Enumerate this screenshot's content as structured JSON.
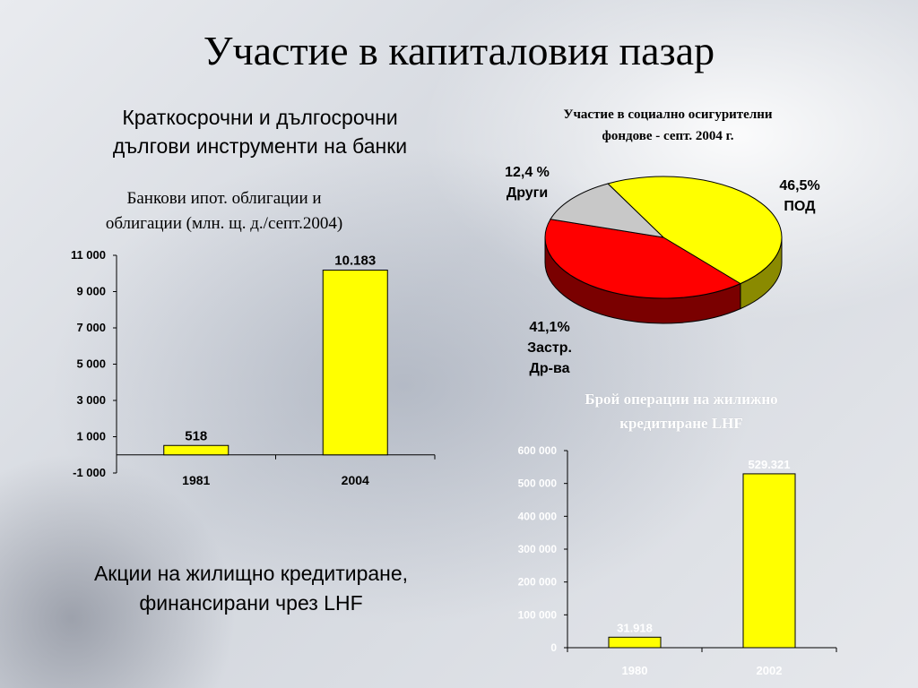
{
  "title": "Участие в капиталовия пазар",
  "subheading": [
    "Краткосрочни и дългосрочни",
    "дългови инструменти на банки"
  ],
  "left_chart_title": [
    "Банкови ипот. облигации и",
    "облигации (млн. щ. д./септ.2004)"
  ],
  "pie_title": [
    "Участие в социално осигурителни",
    "фондове - септ. 2004 г."
  ],
  "right_chart_title": [
    "Брой операции на жилижно",
    "кредитиране LHF"
  ],
  "bottom_text": [
    "Акции на жилищно кредитиране,",
    "финансирани чрез LHF"
  ],
  "pie_labels": {
    "others": [
      "12,4 %",
      "Други"
    ],
    "pod": [
      "46,5%",
      "ПОД"
    ],
    "insurance": [
      "41,1%",
      "Застр.",
      "Др-ва"
    ]
  },
  "colors": {
    "bar": "#ffff00",
    "pod": "#ffff00",
    "insurance": "#ff0000",
    "others": "#c8c8c8"
  },
  "chart_data": [
    {
      "type": "bar",
      "title": "Банкови ипот. облигации и облигации (млн. щ. д./септ.2004)",
      "categories": [
        "1981",
        "2004"
      ],
      "values": [
        518,
        10183
      ],
      "data_labels": [
        "518",
        "10.183"
      ],
      "ylim": [
        -1000,
        11000
      ],
      "yticks": [
        -1000,
        1000,
        3000,
        5000,
        7000,
        9000,
        11000
      ],
      "ytick_labels": [
        "-1 000",
        "1 000",
        "3 000",
        "5 000",
        "7 000",
        "9 000",
        "11 000"
      ],
      "grid": false
    },
    {
      "type": "pie",
      "title": "Участие в социално осигурителни фондове - септ. 2004 г.",
      "labels": [
        "ПОД",
        "Застр. Др-ва",
        "Други"
      ],
      "values": [
        46.5,
        41.1,
        12.4
      ],
      "value_labels": [
        "46,5%",
        "41,1%",
        "12,4 %"
      ]
    },
    {
      "type": "bar",
      "title": "Брой операции на жилижно кредитиране LHF",
      "categories": [
        "1980",
        "2002"
      ],
      "values": [
        31918,
        529321
      ],
      "data_labels": [
        "31.918",
        "529.321"
      ],
      "ylim": [
        0,
        600000
      ],
      "yticks": [
        0,
        100000,
        200000,
        300000,
        400000,
        500000,
        600000
      ],
      "ytick_labels": [
        "0",
        "100 000",
        "200 000",
        "300 000",
        "400 000",
        "500 000",
        "600 000"
      ],
      "grid": false
    }
  ]
}
